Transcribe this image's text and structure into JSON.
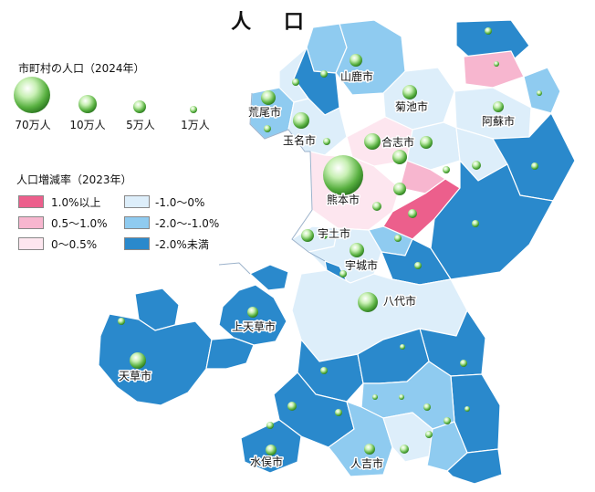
{
  "title": "人 口",
  "legend_population": {
    "title": "市町村の人口（2024年）",
    "sizes": [
      {
        "label": "70万人"
      },
      {
        "label": "10万人"
      },
      {
        "label": "5万人"
      },
      {
        "label": "1万人"
      }
    ]
  },
  "legend_growth": {
    "title": "人口増減率（2023年）",
    "classes": [
      {
        "label": "1.0%以上",
        "color": "#ec5f8c"
      },
      {
        "label": "0.5～1.0%",
        "color": "#f7b6cf"
      },
      {
        "label": "0～0.5%",
        "color": "#fde6ef"
      },
      {
        "label": "-1.0～0%",
        "color": "#ddeefa"
      },
      {
        "label": "-2.0～-1.0%",
        "color": "#8fcbf0"
      },
      {
        "label": "-2.0%未満",
        "color": "#2a89cc"
      }
    ]
  },
  "cities": [
    {
      "name": "山鹿市"
    },
    {
      "name": "荒尾市"
    },
    {
      "name": "菊池市"
    },
    {
      "name": "阿蘇市"
    },
    {
      "name": "玉名市"
    },
    {
      "name": "合志市"
    },
    {
      "name": "熊本市"
    },
    {
      "name": "宇土市"
    },
    {
      "name": "宇城市"
    },
    {
      "name": "八代市"
    },
    {
      "name": "上天草市"
    },
    {
      "name": "天草市"
    },
    {
      "name": "水俣市"
    },
    {
      "name": "人吉市"
    }
  ]
}
